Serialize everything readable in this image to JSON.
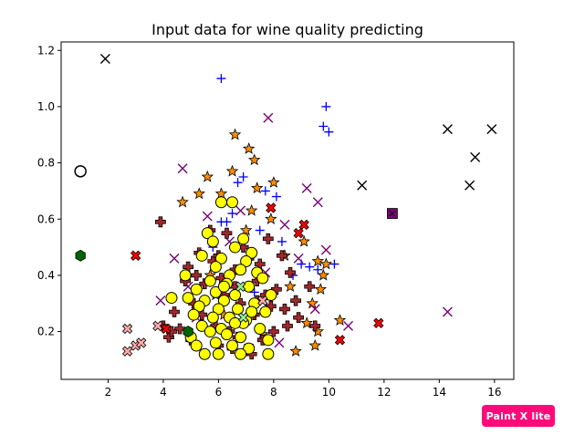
{
  "chart_data": {
    "type": "scatter",
    "title": "Input data for wine quality predicting",
    "xlabel": "",
    "ylabel": "",
    "xlim": [
      0.3,
      16.7
    ],
    "ylim": [
      0.03,
      1.23
    ],
    "xticks": [
      2,
      4,
      6,
      8,
      10,
      12,
      14,
      16
    ],
    "yticks": [
      0.2,
      0.4,
      0.6,
      0.8,
      1.0,
      1.2
    ],
    "grid": false,
    "legend": "none",
    "series": [
      {
        "marker": "star",
        "color": "#ff8c00",
        "points": [
          [
            6.6,
            0.9
          ],
          [
            7.1,
            0.85
          ],
          [
            7.3,
            0.81
          ],
          [
            6.5,
            0.77
          ],
          [
            5.6,
            0.75
          ],
          [
            4.7,
            0.66
          ],
          [
            8,
            0.73
          ],
          [
            7.4,
            0.71
          ],
          [
            9.1,
            0.52
          ],
          [
            9.6,
            0.45
          ],
          [
            9.8,
            0.4
          ],
          [
            9.9,
            0.44
          ],
          [
            9.7,
            0.35
          ],
          [
            9.4,
            0.3
          ],
          [
            9.2,
            0.23
          ],
          [
            9.6,
            0.2
          ],
          [
            9.5,
            0.15
          ],
          [
            10.4,
            0.24
          ],
          [
            8.8,
            0.13
          ],
          [
            7.9,
            0.6
          ],
          [
            7.2,
            0.63
          ],
          [
            6.1,
            0.69
          ],
          [
            5.3,
            0.69
          ],
          [
            5.7,
            0.4
          ],
          [
            5.9,
            0.33
          ],
          [
            8.6,
            0.36
          ],
          [
            8.4,
            0.47
          ],
          [
            7,
            0.56
          ],
          [
            6.2,
            0.26
          ],
          [
            7.6,
            0.19
          ]
        ]
      },
      {
        "marker": "plus-thin",
        "color": "#0000ff",
        "points": [
          [
            6.1,
            1.1
          ],
          [
            9.9,
            1.0
          ],
          [
            9.8,
            0.93
          ],
          [
            10,
            0.91
          ],
          [
            6.9,
            0.75
          ],
          [
            6.7,
            0.73
          ],
          [
            7.7,
            0.7
          ],
          [
            8.1,
            0.68
          ],
          [
            6.5,
            0.62
          ],
          [
            6.3,
            0.59
          ],
          [
            6.1,
            0.59
          ],
          [
            7.5,
            0.56
          ],
          [
            8.3,
            0.52
          ],
          [
            9,
            0.44
          ],
          [
            9.3,
            0.43
          ],
          [
            10.2,
            0.44
          ],
          [
            9.6,
            0.42
          ],
          [
            8.7,
            0.4
          ],
          [
            5.8,
            0.5
          ],
          [
            7.3,
            0.34
          ]
        ]
      },
      {
        "marker": "x-thin",
        "color": "#7b0077",
        "points": [
          [
            7.8,
            0.96
          ],
          [
            4.7,
            0.78
          ],
          [
            9.2,
            0.71
          ],
          [
            9.6,
            0.66
          ],
          [
            5.6,
            0.61
          ],
          [
            8.4,
            0.58
          ],
          [
            9.9,
            0.49
          ],
          [
            8.9,
            0.46
          ],
          [
            4.4,
            0.46
          ],
          [
            3.9,
            0.31
          ],
          [
            10.7,
            0.22
          ],
          [
            14.3,
            0.27
          ],
          [
            6.8,
            0.63
          ],
          [
            7.7,
            0.41
          ],
          [
            5.2,
            0.25
          ],
          [
            9.5,
            0.28
          ],
          [
            6.4,
            0.52
          ],
          [
            8.2,
            0.16
          ],
          [
            4.9,
            0.36
          ],
          [
            7.1,
            0.14
          ]
        ]
      },
      {
        "marker": "x-thin",
        "color": "#000000",
        "points": [
          [
            1.9,
            1.17
          ],
          [
            14.3,
            0.92
          ],
          [
            15.9,
            0.92
          ],
          [
            15.3,
            0.82
          ],
          [
            11.2,
            0.72
          ],
          [
            15.1,
            0.72
          ],
          [
            12.3,
            0.62
          ]
        ]
      },
      {
        "marker": "plus-bold",
        "color": "#a0282d",
        "points": [
          [
            5.8,
            0.45
          ],
          [
            6.6,
            0.42
          ],
          [
            7.4,
            0.38
          ],
          [
            6.2,
            0.33
          ],
          [
            7.9,
            0.29
          ],
          [
            5.4,
            0.26
          ],
          [
            7,
            0.24
          ],
          [
            8.5,
            0.22
          ],
          [
            6.4,
            0.2
          ],
          [
            4.9,
            0.43
          ],
          [
            5.1,
            0.3
          ],
          [
            8.1,
            0.35
          ],
          [
            6,
            0.15
          ],
          [
            7.6,
            0.17
          ],
          [
            4.6,
            0.21
          ],
          [
            8.8,
            0.31
          ],
          [
            6.9,
            0.5
          ],
          [
            5.5,
            0.37
          ],
          [
            7.2,
            0.12
          ],
          [
            4.2,
            0.18
          ],
          [
            4.3,
            0.2
          ],
          [
            8.3,
            0.47
          ],
          [
            5.7,
            0.56
          ],
          [
            7.8,
            0.53
          ],
          [
            6.5,
            0.14
          ],
          [
            8.9,
            0.25
          ],
          [
            4.8,
            0.38
          ],
          [
            5.3,
            0.48
          ],
          [
            6.1,
            0.39
          ],
          [
            7.5,
            0.44
          ],
          [
            9.3,
            0.36
          ],
          [
            9.5,
            0.22
          ],
          [
            8,
            0.2
          ],
          [
            5,
            0.17
          ],
          [
            4.4,
            0.27
          ],
          [
            6.8,
            0.3
          ],
          [
            7.1,
            0.46
          ],
          [
            6.3,
            0.55
          ],
          [
            7.7,
            0.33
          ],
          [
            8.6,
            0.41
          ],
          [
            5.9,
            0.22
          ],
          [
            6.7,
            0.18
          ],
          [
            4,
            0.22
          ],
          [
            3.9,
            0.59
          ],
          [
            8.4,
            0.28
          ],
          [
            5.2,
            0.4
          ],
          [
            7.3,
            0.26
          ],
          [
            6,
            0.47
          ],
          [
            6.6,
            0.36
          ],
          [
            7.4,
            0.31
          ]
        ]
      },
      {
        "marker": "circle",
        "color": "#ffff00",
        "points": [
          [
            5.6,
            0.55
          ],
          [
            5.8,
            0.52
          ],
          [
            6.9,
            0.53
          ],
          [
            7.2,
            0.48
          ],
          [
            6.6,
            0.5
          ],
          [
            5.4,
            0.47
          ],
          [
            6.1,
            0.46
          ],
          [
            7,
            0.45
          ],
          [
            5.9,
            0.43
          ],
          [
            6.8,
            0.42
          ],
          [
            7.4,
            0.41
          ],
          [
            6.4,
            0.4
          ],
          [
            5.7,
            0.38
          ],
          [
            7.6,
            0.39
          ],
          [
            6.3,
            0.37
          ],
          [
            7.1,
            0.36
          ],
          [
            5.2,
            0.35
          ],
          [
            5.9,
            0.34
          ],
          [
            6.6,
            0.33
          ],
          [
            7.9,
            0.33
          ],
          [
            4.3,
            0.32
          ],
          [
            4.9,
            0.32
          ],
          [
            5.5,
            0.31
          ],
          [
            6.2,
            0.31
          ],
          [
            7.3,
            0.3
          ],
          [
            5.3,
            0.29
          ],
          [
            6,
            0.28
          ],
          [
            6.7,
            0.28
          ],
          [
            7.7,
            0.27
          ],
          [
            5.1,
            0.26
          ],
          [
            5.8,
            0.25
          ],
          [
            6.4,
            0.25
          ],
          [
            7,
            0.24
          ],
          [
            6.9,
            0.23
          ],
          [
            5.4,
            0.22
          ],
          [
            6.1,
            0.21
          ],
          [
            7.5,
            0.21
          ],
          [
            5.7,
            0.2
          ],
          [
            6.3,
            0.19
          ],
          [
            5,
            0.18
          ],
          [
            6.8,
            0.18
          ],
          [
            7.8,
            0.17
          ],
          [
            5.9,
            0.16
          ],
          [
            6.5,
            0.15
          ],
          [
            5.2,
            0.15
          ],
          [
            7.1,
            0.14
          ],
          [
            5.5,
            0.12
          ],
          [
            6,
            0.12
          ],
          [
            6.8,
            0.12
          ],
          [
            7.8,
            0.12
          ],
          [
            6.6,
            0.23
          ],
          [
            6.2,
            0.36
          ],
          [
            6.5,
            0.66
          ],
          [
            6.1,
            0.66
          ],
          [
            7.2,
            0.27
          ],
          [
            4.8,
            0.4
          ]
        ]
      },
      {
        "marker": "x-bold",
        "color": "#ff0000",
        "points": [
          [
            3,
            0.47
          ],
          [
            9.1,
            0.58
          ],
          [
            8.9,
            0.55
          ],
          [
            4.1,
            0.21
          ],
          [
            11.8,
            0.23
          ],
          [
            10.4,
            0.17
          ],
          [
            7.9,
            0.64
          ]
        ]
      },
      {
        "marker": "x-bold",
        "color": "#ffaaaa",
        "points": [
          [
            2.7,
            0.21
          ],
          [
            2.7,
            0.13
          ],
          [
            3,
            0.15
          ],
          [
            3.2,
            0.16
          ],
          [
            3.8,
            0.22
          ],
          [
            7.6,
            0.31
          ]
        ]
      },
      {
        "marker": "circle-open",
        "color": "#ffffff",
        "points": [
          [
            1,
            0.77
          ]
        ]
      },
      {
        "marker": "hexagon",
        "color": "#006400",
        "points": [
          [
            1,
            0.47
          ],
          [
            4.9,
            0.2
          ]
        ]
      },
      {
        "marker": "square",
        "color": "#7b0077",
        "points": [
          [
            12.3,
            0.62
          ]
        ]
      },
      {
        "marker": "x-bold",
        "color": "#90ee90",
        "points": [
          [
            6.8,
            0.36
          ],
          [
            6.9,
            0.25
          ]
        ]
      }
    ]
  },
  "watermark": {
    "text": "Paint X lite"
  }
}
